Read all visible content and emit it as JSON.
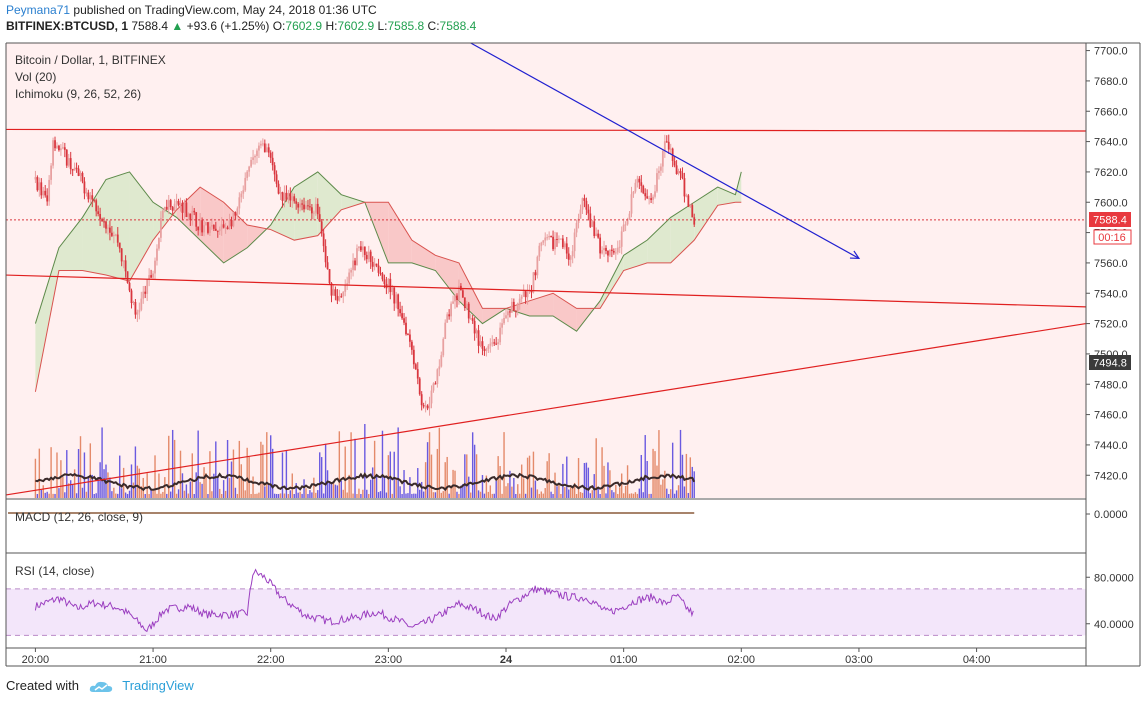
{
  "header": {
    "author": "Peymana71",
    "published": "published on TradingView.com, May 24, 2018 01:36 UTC",
    "symbol_line": "BITFINEX:BTCUSD, 1",
    "last": "7588.4",
    "change": "+93.6 (+1.25%)",
    "open_label": "O:",
    "open": "7602.9",
    "high_label": "H:",
    "high": "7602.9",
    "low_label": "L:",
    "low": "7585.8",
    "close_label": "C:",
    "close": "7588.4"
  },
  "legend": {
    "title": "Bitcoin / Dollar, 1, BITFINEX",
    "vol": "Vol (20)",
    "ichimoku": "Ichimoku (9, 26, 52, 26)",
    "macd": "MACD (12, 26, close, 9)",
    "rsi": "RSI (14, close)"
  },
  "price_badges": {
    "last": "7588.4",
    "countdown": "00:16",
    "ichimoku_base": "7494.8"
  },
  "colors": {
    "up": "#e8a0a0",
    "down": "#d9363e",
    "vol_up": "#e48a6a",
    "vol_down": "#6a5ae0",
    "pane_bg": "#fff0f0",
    "rsi_band": "#f3e6fa",
    "rsi_line": "#9b3fc0",
    "trend_red": "#e02020",
    "trend_blue": "#2020d0",
    "cloud_green": "#dfe9cf",
    "cloud_red": "#f9c8c8",
    "vol_ma": "#3a2a2a",
    "axis_text": "#333333"
  },
  "footer": {
    "created_with": "Created with",
    "brand": "TradingView"
  },
  "chart_data": {
    "type": "candlestick",
    "symbol": "BITFINEX:BTCUSD",
    "interval": "1",
    "price_axis": {
      "ticks": [
        7420,
        7440,
        7460,
        7480,
        7500,
        7520,
        7540,
        7560,
        7580,
        7600,
        7620,
        7640,
        7660,
        7680,
        7700
      ],
      "range": [
        7405,
        7705
      ]
    },
    "macd_axis": {
      "ticks": [
        "0.0000"
      ]
    },
    "rsi_axis": {
      "ticks": [
        "80.0000",
        "40.0000"
      ],
      "range": [
        20,
        100
      ],
      "upper_band": 70,
      "lower_band": 30
    },
    "time_axis": {
      "labels": [
        "20:00",
        "21:00",
        "22:00",
        "23:00",
        "24",
        "01:00",
        "02:00",
        "03:00",
        "04:00"
      ],
      "hours": [
        0,
        1,
        2,
        3,
        4,
        5,
        6,
        7,
        8
      ],
      "range": [
        -0.25,
        8.93
      ]
    },
    "last_price": 7588.4,
    "price_path": [
      [
        0,
        7615
      ],
      [
        0.1,
        7600
      ],
      [
        0.15,
        7642
      ],
      [
        0.3,
        7625
      ],
      [
        0.5,
        7600
      ],
      [
        0.7,
        7575
      ],
      [
        0.85,
        7525
      ],
      [
        1.0,
        7555
      ],
      [
        1.1,
        7600
      ],
      [
        1.25,
        7598
      ],
      [
        1.4,
        7585
      ],
      [
        1.55,
        7580
      ],
      [
        1.7,
        7590
      ],
      [
        1.85,
        7630
      ],
      [
        1.95,
        7638
      ],
      [
        2.1,
        7602
      ],
      [
        2.25,
        7600
      ],
      [
        2.4,
        7595
      ],
      [
        2.5,
        7545
      ],
      [
        2.6,
        7535
      ],
      [
        2.75,
        7570
      ],
      [
        2.9,
        7560
      ],
      [
        3.0,
        7545
      ],
      [
        3.1,
        7530
      ],
      [
        3.2,
        7505
      ],
      [
        3.3,
        7462
      ],
      [
        3.4,
        7480
      ],
      [
        3.5,
        7525
      ],
      [
        3.6,
        7540
      ],
      [
        3.7,
        7525
      ],
      [
        3.8,
        7500
      ],
      [
        3.9,
        7505
      ],
      [
        4.05,
        7530
      ],
      [
        4.2,
        7540
      ],
      [
        4.3,
        7572
      ],
      [
        4.45,
        7575
      ],
      [
        4.55,
        7565
      ],
      [
        4.65,
        7600
      ],
      [
        4.8,
        7570
      ],
      [
        4.95,
        7568
      ],
      [
        5.1,
        7612
      ],
      [
        5.25,
        7605
      ],
      [
        5.35,
        7640
      ],
      [
        5.45,
        7622
      ],
      [
        5.55,
        7600
      ],
      [
        5.6,
        7588.4
      ]
    ],
    "ichimoku_cloud": {
      "span_a": [
        [
          0,
          7520
        ],
        [
          0.2,
          7570
        ],
        [
          0.4,
          7590
        ],
        [
          0.6,
          7615
        ],
        [
          0.8,
          7620
        ],
        [
          1.0,
          7600
        ],
        [
          1.2,
          7590
        ],
        [
          1.4,
          7575
        ],
        [
          1.6,
          7560
        ],
        [
          1.8,
          7570
        ],
        [
          2.0,
          7585
        ],
        [
          2.2,
          7610
        ],
        [
          2.4,
          7620
        ],
        [
          2.6,
          7605
        ],
        [
          2.8,
          7600
        ],
        [
          3.0,
          7560
        ],
        [
          3.2,
          7560
        ],
        [
          3.4,
          7555
        ],
        [
          3.6,
          7535
        ],
        [
          3.8,
          7520
        ],
        [
          4.0,
          7530
        ],
        [
          4.2,
          7525
        ],
        [
          4.4,
          7525
        ],
        [
          4.6,
          7515
        ],
        [
          4.8,
          7535
        ],
        [
          5.0,
          7565
        ],
        [
          5.2,
          7575
        ],
        [
          5.4,
          7590
        ],
        [
          5.6,
          7600
        ],
        [
          5.8,
          7610
        ],
        [
          5.95,
          7605
        ],
        [
          6.0,
          7620
        ]
      ],
      "span_b": [
        [
          0,
          7475
        ],
        [
          0.2,
          7555
        ],
        [
          0.4,
          7555
        ],
        [
          0.6,
          7552
        ],
        [
          0.8,
          7548
        ],
        [
          1.0,
          7575
        ],
        [
          1.2,
          7595
        ],
        [
          1.4,
          7610
        ],
        [
          1.6,
          7600
        ],
        [
          1.8,
          7585
        ],
        [
          2.0,
          7582
        ],
        [
          2.2,
          7575
        ],
        [
          2.4,
          7578
        ],
        [
          2.6,
          7595
        ],
        [
          2.8,
          7600
        ],
        [
          3.0,
          7600
        ],
        [
          3.2,
          7575
        ],
        [
          3.4,
          7565
        ],
        [
          3.6,
          7560
        ],
        [
          3.8,
          7530
        ],
        [
          4.0,
          7530
        ],
        [
          4.2,
          7535
        ],
        [
          4.4,
          7540
        ],
        [
          4.6,
          7530
        ],
        [
          4.8,
          7530
        ],
        [
          5.0,
          7555
        ],
        [
          5.2,
          7560
        ],
        [
          5.4,
          7560
        ],
        [
          5.6,
          7575
        ],
        [
          5.8,
          7598
        ],
        [
          5.95,
          7600
        ],
        [
          6.0,
          7600
        ]
      ]
    },
    "trendlines": [
      {
        "color": "red",
        "from": [
          -0.25,
          7648
        ],
        "to": [
          8.93,
          7647
        ]
      },
      {
        "color": "red",
        "from": [
          -0.25,
          7552
        ],
        "to": [
          8.93,
          7531
        ]
      },
      {
        "color": "red",
        "from": [
          -0.25,
          7407
        ],
        "to": [
          8.93,
          7520
        ]
      },
      {
        "color": "blue",
        "from": [
          3.7,
          7705
        ],
        "to": [
          7.0,
          7563
        ],
        "arrow": true
      }
    ],
    "rsi_path": [
      [
        0,
        55
      ],
      [
        0.2,
        62
      ],
      [
        0.35,
        53
      ],
      [
        0.5,
        58
      ],
      [
        0.7,
        54
      ],
      [
        0.8,
        48
      ],
      [
        0.95,
        34
      ],
      [
        1.1,
        52
      ],
      [
        1.3,
        55
      ],
      [
        1.45,
        48
      ],
      [
        1.7,
        48
      ],
      [
        1.8,
        49
      ],
      [
        1.85,
        85
      ],
      [
        1.95,
        80
      ],
      [
        2.1,
        62
      ],
      [
        2.3,
        47
      ],
      [
        2.5,
        42
      ],
      [
        2.7,
        45
      ],
      [
        2.9,
        50
      ],
      [
        3.1,
        42
      ],
      [
        3.2,
        37
      ],
      [
        3.3,
        40
      ],
      [
        3.45,
        48
      ],
      [
        3.6,
        57
      ],
      [
        3.75,
        52
      ],
      [
        3.9,
        44
      ],
      [
        4.05,
        58
      ],
      [
        4.25,
        70
      ],
      [
        4.4,
        66
      ],
      [
        4.55,
        63
      ],
      [
        4.7,
        62
      ],
      [
        4.85,
        50
      ],
      [
        4.95,
        52
      ],
      [
        5.1,
        60
      ],
      [
        5.25,
        63
      ],
      [
        5.35,
        57
      ],
      [
        5.45,
        64
      ],
      [
        5.55,
        52
      ],
      [
        5.6,
        48
      ]
    ]
  }
}
